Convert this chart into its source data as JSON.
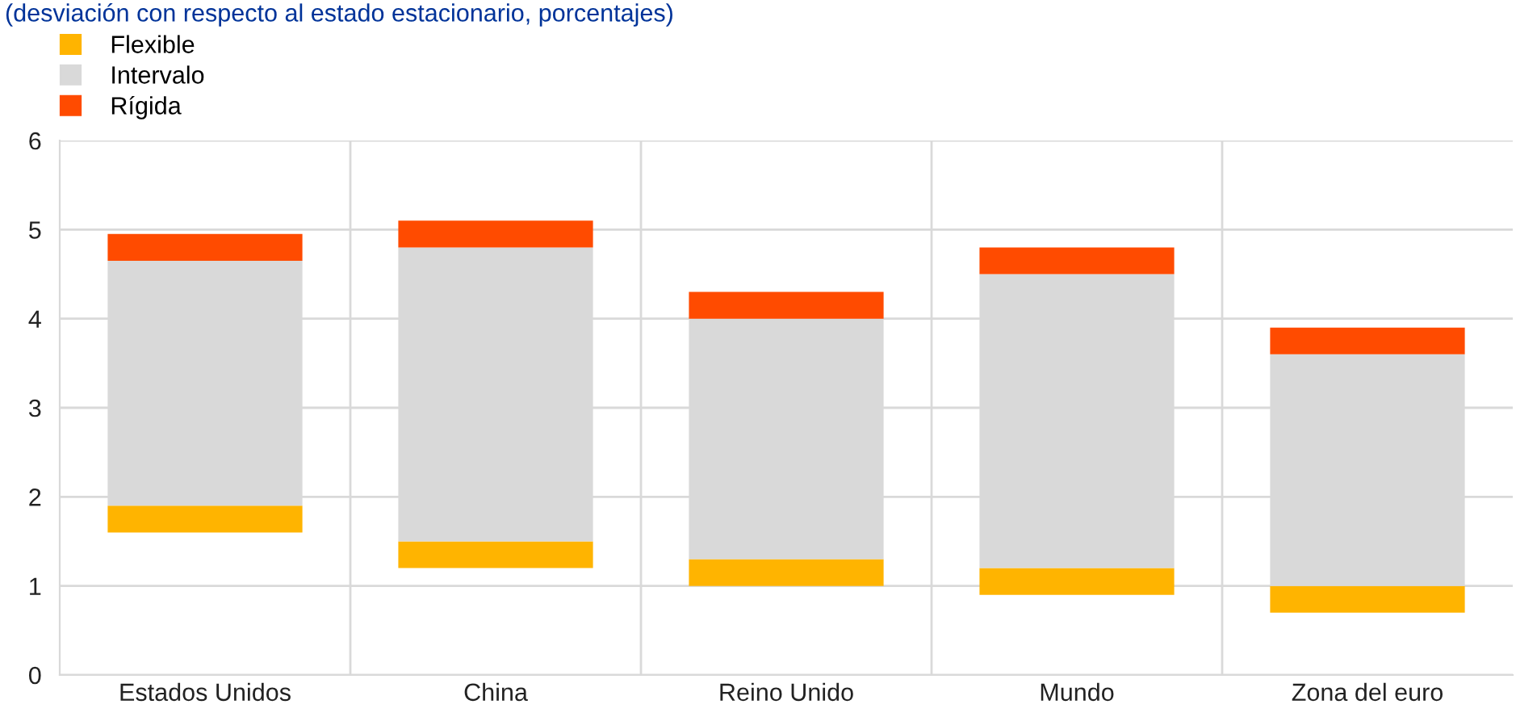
{
  "chart_data": {
    "type": "bar",
    "subtitle": "(desviación con respecto al estado estacionario, porcentajes)",
    "categories": [
      "Estados Unidos",
      "China",
      "Reino Unido",
      "Mundo",
      "Zona del euro"
    ],
    "series": [
      {
        "name": "Flexible",
        "color": "#ffb400",
        "base": [
          1.6,
          1.2,
          1.0,
          0.9,
          0.7
        ],
        "values": [
          0.3,
          0.3,
          0.3,
          0.3,
          0.3
        ]
      },
      {
        "name": "Intervalo",
        "color": "#d9d9d9",
        "base": [
          1.9,
          1.5,
          1.3,
          1.2,
          1.0
        ],
        "values": [
          2.75,
          3.3,
          2.7,
          3.3,
          2.6
        ]
      },
      {
        "name": "Rígida",
        "color": "#ff4b00",
        "base": [
          4.65,
          4.8,
          4.0,
          4.5,
          3.6
        ],
        "values": [
          0.3,
          0.3,
          0.3,
          0.3,
          0.3
        ]
      }
    ],
    "ylim": [
      0,
      6
    ],
    "yticks": [
      0,
      1,
      2,
      3,
      4,
      5,
      6
    ],
    "grid": true,
    "legend": "top left"
  }
}
